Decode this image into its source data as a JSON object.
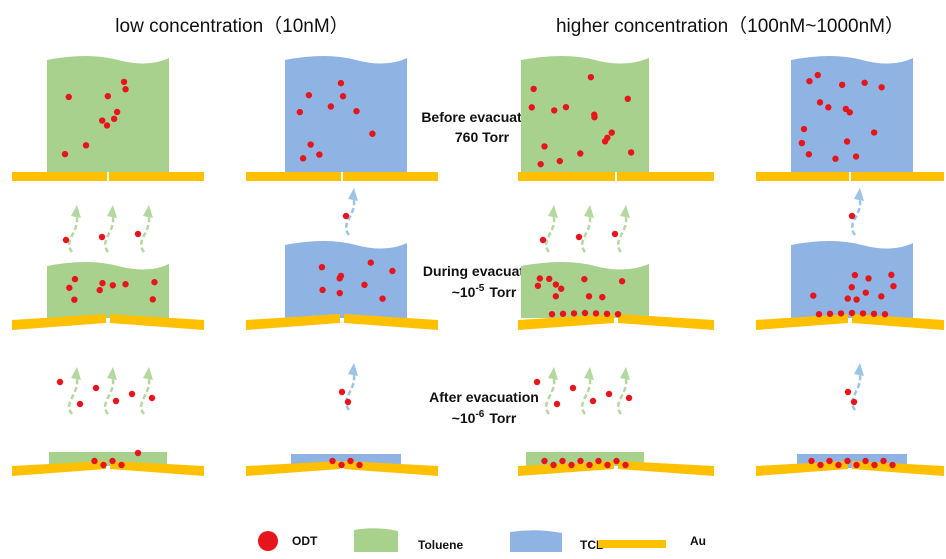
{
  "header": {
    "left": "low concentration（10nM）",
    "right": "higher concentration（100nM~1000nM）"
  },
  "stages": [
    {
      "title": "Before evacuation",
      "pressure": {
        "base": "760 Torr"
      }
    },
    {
      "title": "During evacuation",
      "pressure": {
        "base": "~10",
        "exp": "-5",
        "unit": "Torr"
      }
    },
    {
      "title": "After evacuation",
      "pressure": {
        "base": "~10",
        "exp": "-6",
        "unit": "Torr"
      }
    }
  ],
  "legend": [
    "ODT",
    "Toluene",
    "TCB",
    "Au"
  ]
}
